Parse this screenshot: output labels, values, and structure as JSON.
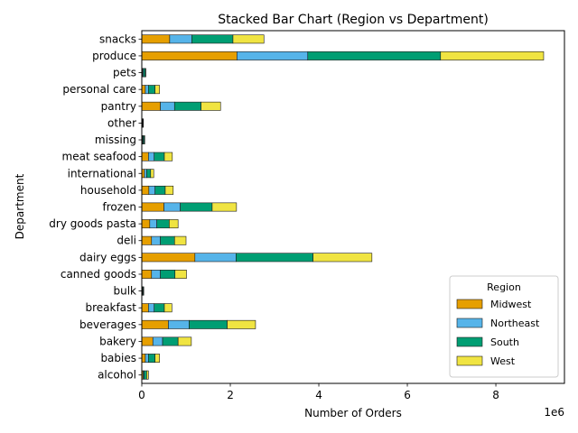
{
  "chart_data": {
    "type": "bar",
    "orientation": "horizontal",
    "stacked": true,
    "title": "Stacked Bar Chart (Region vs Department)",
    "xlabel": "Number of Orders",
    "ylabel": "Department",
    "x_exponent_label": "1e6",
    "xlim": [
      0,
      9.55
    ],
    "xticks": [
      0,
      2,
      4,
      6,
      8
    ],
    "grid": false,
    "legend": {
      "title": "Region",
      "placement": "lower-right"
    },
    "categories": [
      "alcohol",
      "babies",
      "bakery",
      "beverages",
      "breakfast",
      "bulk",
      "canned goods",
      "dairy eggs",
      "deli",
      "dry goods pasta",
      "frozen",
      "household",
      "international",
      "meat seafood",
      "missing",
      "other",
      "pantry",
      "personal care",
      "pets",
      "produce",
      "snacks"
    ],
    "series": [
      {
        "name": "Midwest",
        "color": "#E69F00",
        "values": [
          0.03,
          0.08,
          0.25,
          0.6,
          0.15,
          0.01,
          0.22,
          1.2,
          0.22,
          0.18,
          0.5,
          0.16,
          0.06,
          0.15,
          0.016,
          0.008,
          0.42,
          0.08,
          0.02,
          2.15,
          0.63
        ]
      },
      {
        "name": "Northeast",
        "color": "#56B4E9",
        "values": [
          0.02,
          0.07,
          0.22,
          0.47,
          0.13,
          0.01,
          0.2,
          0.93,
          0.2,
          0.16,
          0.37,
          0.14,
          0.05,
          0.13,
          0.014,
          0.007,
          0.32,
          0.07,
          0.02,
          1.6,
          0.5
        ]
      },
      {
        "name": "South",
        "color": "#009E73",
        "values": [
          0.06,
          0.15,
          0.35,
          0.86,
          0.23,
          0.013,
          0.33,
          1.74,
          0.32,
          0.28,
          0.72,
          0.23,
          0.09,
          0.23,
          0.025,
          0.01,
          0.6,
          0.15,
          0.04,
          3.0,
          0.93
        ]
      },
      {
        "name": "West",
        "color": "#F0E442",
        "values": [
          0.04,
          0.1,
          0.3,
          0.64,
          0.17,
          0.01,
          0.26,
          1.33,
          0.26,
          0.2,
          0.55,
          0.18,
          0.07,
          0.18,
          0.01,
          0.008,
          0.44,
          0.1,
          0.01,
          2.33,
          0.7
        ]
      }
    ]
  }
}
